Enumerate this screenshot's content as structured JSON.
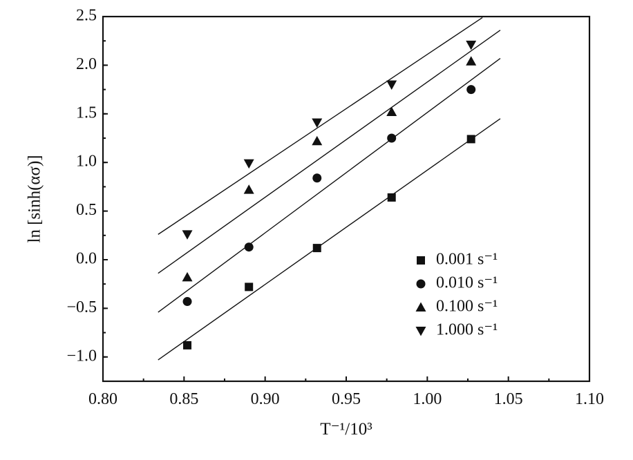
{
  "chart_data": {
    "type": "scatter",
    "xlabel": "T⁻¹/10³",
    "ylabel": "ln [sinh(ασ)]",
    "xlim": [
      0.8,
      1.1
    ],
    "ylim": [
      -1.25,
      2.5
    ],
    "x_ticks": [
      "0.80",
      "0.85",
      "0.90",
      "0.95",
      "1.00",
      "1.05",
      "1.10"
    ],
    "y_ticks": [
      "−1.0",
      "−0.5",
      "0.0",
      "0.5",
      "1.0",
      "1.5",
      "2.0",
      "2.5"
    ],
    "grid": false,
    "legend_position": "lower-right",
    "x": [
      0.852,
      0.89,
      0.932,
      0.978,
      1.027
    ],
    "series": [
      {
        "name": "0.001 s⁻¹",
        "marker": "square",
        "values": [
          -0.88,
          -0.28,
          0.12,
          0.64,
          1.24
        ],
        "fit": {
          "x": [
            0.834,
            1.045
          ],
          "y": [
            -1.03,
            1.45
          ]
        }
      },
      {
        "name": "0.010 s⁻¹",
        "marker": "circle",
        "values": [
          -0.43,
          0.13,
          0.84,
          1.25,
          1.75
        ],
        "fit": {
          "x": [
            0.834,
            1.045
          ],
          "y": [
            -0.54,
            2.07
          ]
        }
      },
      {
        "name": "0.100 s⁻¹",
        "marker": "triangle-up",
        "values": [
          -0.18,
          0.72,
          1.22,
          1.52,
          2.04
        ],
        "fit": {
          "x": [
            0.834,
            1.045
          ],
          "y": [
            -0.14,
            2.36
          ]
        }
      },
      {
        "name": "1.000 s⁻¹",
        "marker": "triangle-down",
        "values": [
          0.26,
          0.99,
          1.41,
          1.8,
          2.21
        ],
        "fit": {
          "x": [
            0.834,
            1.034
          ],
          "y": [
            0.26,
            2.49
          ]
        }
      }
    ]
  }
}
